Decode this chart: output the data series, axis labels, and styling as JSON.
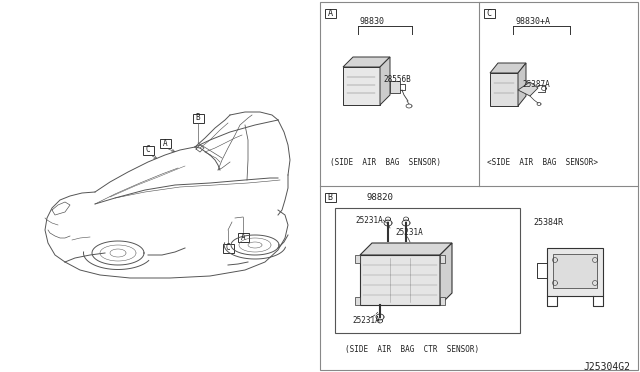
{
  "bg_color": "#ffffff",
  "line_color": "#333333",
  "text_color": "#222222",
  "diagram_id": "J25304G2",
  "panel_A": {
    "label": "A",
    "part_num_top": "98830",
    "part_num_sub": "28556B",
    "caption": "(SIDE  AIR  BAG  SENSOR)"
  },
  "panel_C": {
    "label": "C",
    "part_num_top": "98830+A",
    "part_num_sub": "25387A",
    "caption": "<SIDE  AIR  BAG  SENSOR>"
  },
  "panel_B": {
    "label": "B",
    "part_num_top": "98820",
    "part_num_sub1": "25231A",
    "part_num_sub2": "25231A",
    "part_num_sub3": "25231A",
    "part_num_right": "25384R",
    "caption": "(SIDE  AIR  BAG  CTR  SENSOR)"
  }
}
